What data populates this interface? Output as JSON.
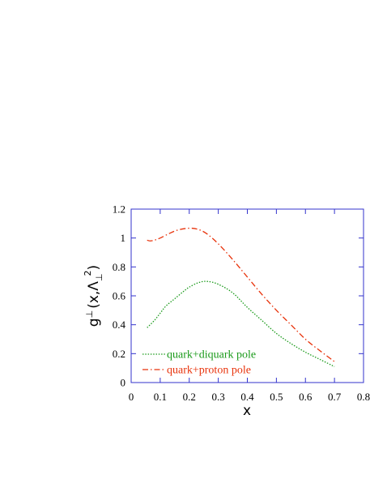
{
  "chart_data": {
    "type": "line",
    "title": "",
    "xlabel": "x",
    "ylabel_parts": {
      "g": "g",
      "perp_super": "⊥",
      "open": "(x,",
      "lambda": "Λ",
      "perp_sub": "⊥",
      "sq": "2",
      "close": ")"
    },
    "xlim": [
      0,
      0.8
    ],
    "ylim": [
      0,
      1.2
    ],
    "xticks": [
      0,
      0.1,
      0.2,
      0.3,
      0.4,
      0.5,
      0.6,
      0.7,
      0.8
    ],
    "yticks": [
      0,
      0.2,
      0.4,
      0.6,
      0.8,
      1,
      1.2
    ],
    "xtick_labels": [
      "0",
      "0.1",
      "0.2",
      "0.3",
      "0.4",
      "0.5",
      "0.6",
      "0.7",
      "0.8"
    ],
    "ytick_labels": [
      "0",
      "0.2",
      "0.4",
      "0.6",
      "0.8",
      "1",
      "1.2"
    ],
    "legend_position": "bottom-left",
    "series": [
      {
        "name": "quark+diquark pole",
        "color": "#1a9a1a",
        "style": "dotted",
        "points": [
          [
            0.055,
            0.38
          ],
          [
            0.08,
            0.43
          ],
          [
            0.1,
            0.48
          ],
          [
            0.12,
            0.53
          ],
          [
            0.15,
            0.58
          ],
          [
            0.18,
            0.63
          ],
          [
            0.2,
            0.66
          ],
          [
            0.23,
            0.69
          ],
          [
            0.26,
            0.7
          ],
          [
            0.3,
            0.68
          ],
          [
            0.35,
            0.62
          ],
          [
            0.4,
            0.52
          ],
          [
            0.45,
            0.43
          ],
          [
            0.5,
            0.34
          ],
          [
            0.55,
            0.27
          ],
          [
            0.6,
            0.21
          ],
          [
            0.65,
            0.16
          ],
          [
            0.7,
            0.11
          ]
        ]
      },
      {
        "name": "quark+proton pole",
        "color": "#e8320a",
        "style": "dashdot",
        "points": [
          [
            0.055,
            0.985
          ],
          [
            0.065,
            0.98
          ],
          [
            0.08,
            0.985
          ],
          [
            0.1,
            1.0
          ],
          [
            0.13,
            1.03
          ],
          [
            0.16,
            1.055
          ],
          [
            0.2,
            1.068
          ],
          [
            0.23,
            1.06
          ],
          [
            0.26,
            1.03
          ],
          [
            0.3,
            0.96
          ],
          [
            0.35,
            0.85
          ],
          [
            0.4,
            0.73
          ],
          [
            0.45,
            0.61
          ],
          [
            0.5,
            0.5
          ],
          [
            0.55,
            0.4
          ],
          [
            0.6,
            0.3
          ],
          [
            0.65,
            0.22
          ],
          [
            0.7,
            0.145
          ]
        ]
      }
    ]
  }
}
